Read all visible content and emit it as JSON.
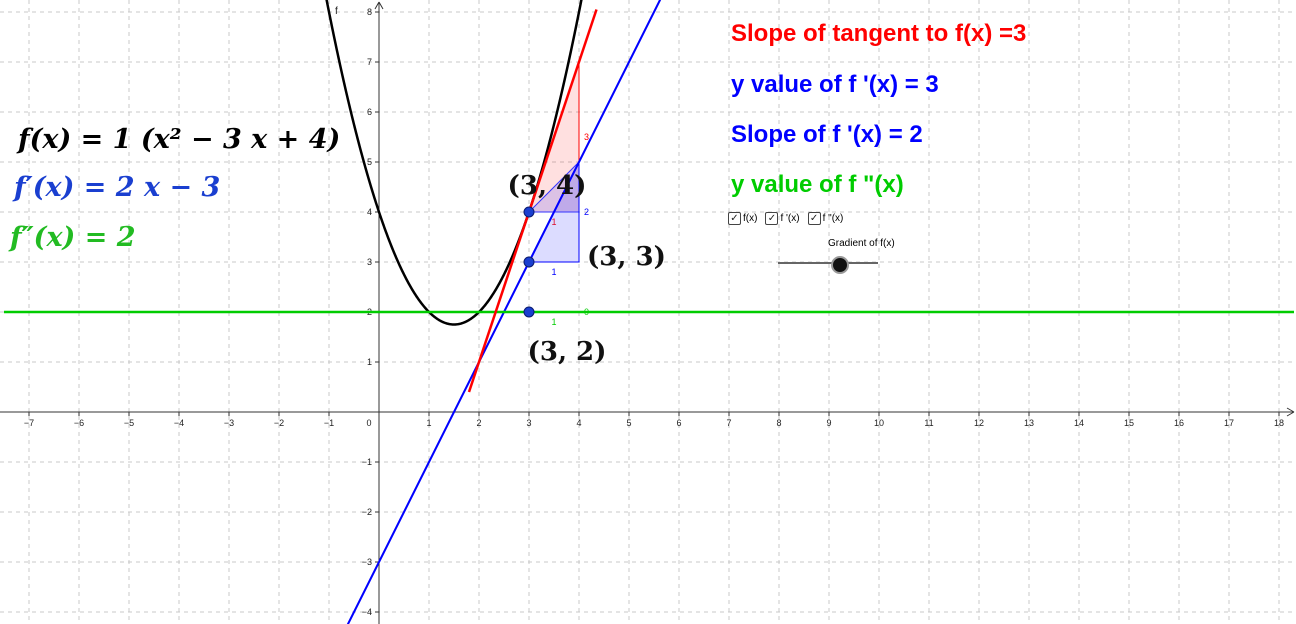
{
  "formulas": {
    "f": "f(x) = 1 (x² − 3 x + 4)",
    "f1": "f′(x) = 2 x − 3",
    "f2": "f″(x) = 2"
  },
  "info": {
    "slope_tangent": "Slope of tangent to f(x) =3",
    "y_f1": "y value of f '(x) =  3",
    "slope_f1": "Slope of f '(x) = 2",
    "y_f2": "y value of f \"(x)"
  },
  "checkboxes": [
    {
      "label": "f(x)",
      "checked": true
    },
    {
      "label": "f '(x)",
      "checked": true
    },
    {
      "label": "f \"(x)",
      "checked": true
    }
  ],
  "slider": {
    "label": "Gradient of f(x)",
    "value": 3
  },
  "colors": {
    "f": "#000000",
    "tangent": "#ff0000",
    "f1": "#0000ff",
    "f2": "#00cc00"
  },
  "chart_data": {
    "type": "line",
    "xlim": [
      -7.5,
      18.3
    ],
    "ylim": [
      -4.2,
      8.2
    ],
    "grid": true,
    "x_ticks": [
      -7,
      -6,
      -5,
      -4,
      -3,
      -2,
      -1,
      0,
      1,
      2,
      3,
      4,
      5,
      6,
      7,
      8,
      9,
      10,
      11,
      12,
      13,
      14,
      15,
      16,
      17,
      18
    ],
    "y_ticks": [
      -4,
      -3,
      -2,
      -1,
      0,
      1,
      2,
      3,
      4,
      5,
      6,
      7,
      8
    ],
    "axis_label_y": "f",
    "series": [
      {
        "name": "f",
        "formula": "1 (x^2 - 3 x + 4)",
        "coeffs": [
          1,
          -3,
          4
        ]
      },
      {
        "name": "f'",
        "formula": "2 x - 3",
        "coeffs": [
          0,
          2,
          -3
        ]
      },
      {
        "name": "f''",
        "formula": "2",
        "coeffs": [
          0,
          0,
          2
        ]
      }
    ],
    "tangent": {
      "x0": 3,
      "y0": 4,
      "slope": 3,
      "x_range": [
        1.8,
        4.35
      ]
    },
    "points": [
      {
        "x": 3,
        "y": 4,
        "label": "(3, 4)",
        "label_pos": "above-left"
      },
      {
        "x": 3,
        "y": 3,
        "label": "(3, 3)",
        "label_pos": "right"
      },
      {
        "x": 3,
        "y": 2,
        "label": "(3, 2)",
        "label_pos": "below"
      }
    ],
    "slope_triangles": [
      {
        "x0": 3,
        "y0": 4,
        "x1": 4,
        "slope": 3,
        "run_label": "1",
        "rise_label": "3",
        "color": "#ff0000"
      },
      {
        "x0": 3,
        "y0": 4,
        "x1": 4,
        "slope": 1,
        "run_label": "",
        "rise_label": "",
        "color": "#3333ff"
      },
      {
        "x0": 3,
        "y0": 3,
        "x1": 4,
        "slope": 2,
        "run_label": "1",
        "rise_label": "2",
        "color": "#0000ff"
      },
      {
        "x0": 3,
        "y0": 2,
        "x1": 4,
        "slope": 0,
        "run_label": "1",
        "rise_label": "0",
        "color": "#00cc00"
      }
    ]
  }
}
